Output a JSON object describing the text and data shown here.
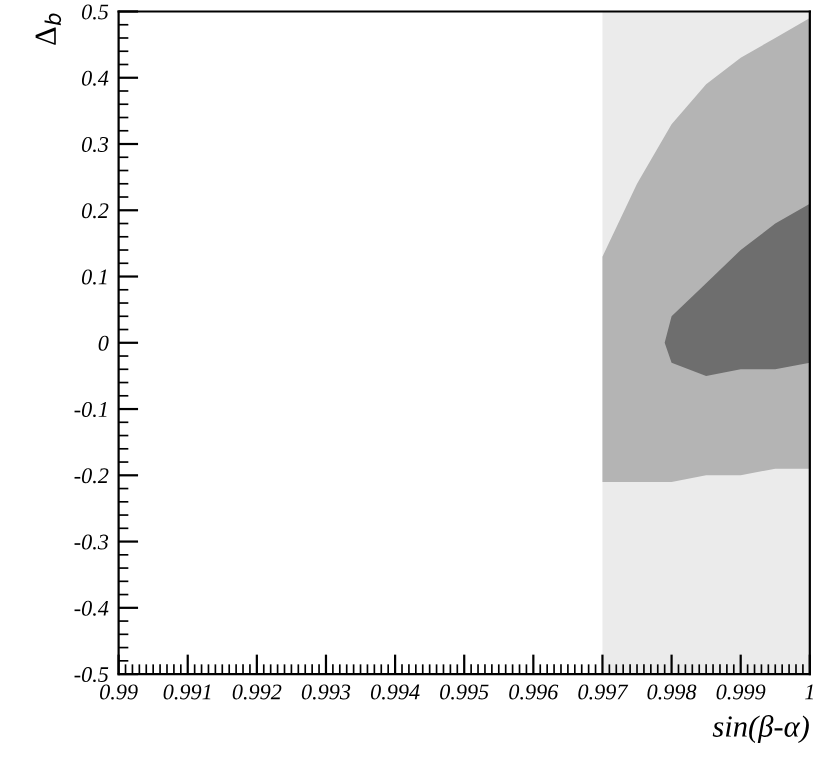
{
  "chart_data": {
    "type": "area",
    "xlabel": "sin(β-α)",
    "ylabel": "Δ$_{b}$",
    "xlim": [
      0.99,
      1
    ],
    "xticks": [
      0.99,
      0.991,
      0.992,
      0.993,
      0.994,
      0.995,
      0.996,
      0.997,
      0.998,
      0.999,
      1
    ],
    "ylim": [
      -0.5,
      0.5
    ],
    "yticks": [
      -0.5,
      -0.4,
      -0.3,
      -0.2,
      -0.1,
      0,
      0.1,
      0.2,
      0.3,
      0.4,
      0.5
    ],
    "grid": false,
    "legend": false,
    "bands": [
      {
        "axis": "x",
        "from": 0.997,
        "to": 1,
        "color": "#ebebeb"
      }
    ],
    "series": [
      {
        "color": "#b4b4b4",
        "x": [
          0.997,
          0.9975,
          0.998,
          0.9985,
          0.999,
          0.9995,
          1,
          1,
          0.9995,
          0.999,
          0.9985,
          0.998,
          0.9975,
          0.997
        ],
        "values": [
          0.13,
          0.24,
          0.33,
          0.39,
          0.43,
          0.46,
          0.49,
          -0.19,
          -0.19,
          -0.2,
          -0.2,
          -0.21,
          -0.21,
          -0.21
        ]
      },
      {
        "color": "#6e6e6e",
        "x": [
          0.9979,
          0.998,
          0.9985,
          0.999,
          0.9995,
          1,
          1,
          0.9995,
          0.999,
          0.9985,
          0.998
        ],
        "values": [
          0.0,
          0.04,
          0.09,
          0.14,
          0.18,
          0.21,
          -0.03,
          -0.04,
          -0.04,
          -0.05,
          -0.03
        ]
      }
    ]
  }
}
